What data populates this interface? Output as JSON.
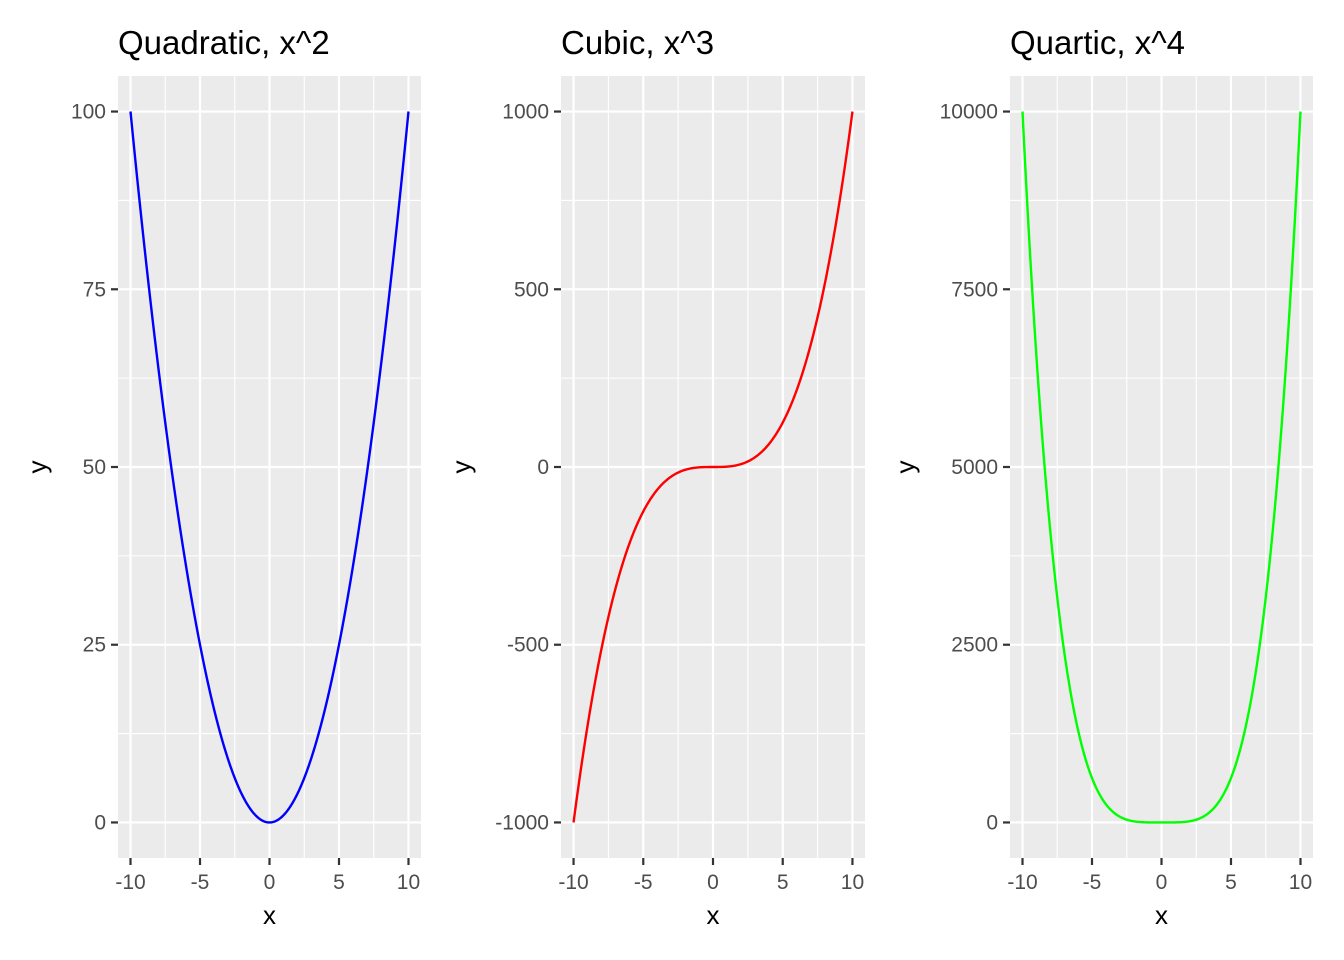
{
  "chart_data": [
    {
      "type": "line",
      "title": "Quadratic, x^2",
      "xlabel": "x",
      "ylabel": "y",
      "xlim": [
        -10,
        10
      ],
      "ylim": [
        0,
        100
      ],
      "x_ticks": [
        -10,
        -5,
        0,
        5,
        10
      ],
      "x_tick_labels": [
        "-10",
        "-5",
        "0",
        "5",
        "10"
      ],
      "y_ticks": [
        0,
        25,
        50,
        75,
        100
      ],
      "y_tick_labels": [
        "0",
        "25",
        "50",
        "75",
        "100"
      ],
      "grid": true,
      "color": "#0000ff",
      "x": [
        -10,
        -9,
        -8,
        -7,
        -6,
        -5,
        -4,
        -3,
        -2,
        -1,
        0,
        1,
        2,
        3,
        4,
        5,
        6,
        7,
        8,
        9,
        10
      ],
      "y": [
        100,
        81,
        64,
        49,
        36,
        25,
        16,
        9,
        4,
        1,
        0,
        1,
        4,
        9,
        16,
        25,
        36,
        49,
        64,
        81,
        100
      ]
    },
    {
      "type": "line",
      "title": "Cubic, x^3",
      "xlabel": "x",
      "ylabel": "y",
      "xlim": [
        -10,
        10
      ],
      "ylim": [
        -1000,
        1000
      ],
      "x_ticks": [
        -10,
        -5,
        0,
        5,
        10
      ],
      "x_tick_labels": [
        "-10",
        "-5",
        "0",
        "5",
        "10"
      ],
      "y_ticks": [
        -1000,
        -500,
        0,
        500,
        1000
      ],
      "y_tick_labels": [
        "-1000",
        "-500",
        "0",
        "500",
        "1000"
      ],
      "grid": true,
      "color": "#ff0000",
      "x": [
        -10,
        -9,
        -8,
        -7,
        -6,
        -5,
        -4,
        -3,
        -2,
        -1,
        0,
        1,
        2,
        3,
        4,
        5,
        6,
        7,
        8,
        9,
        10
      ],
      "y": [
        -1000,
        -729,
        -512,
        -343,
        -216,
        -125,
        -64,
        -27,
        -8,
        -1,
        0,
        1,
        8,
        27,
        64,
        125,
        216,
        343,
        512,
        729,
        1000
      ]
    },
    {
      "type": "line",
      "title": "Quartic, x^4",
      "xlabel": "x",
      "ylabel": "y",
      "xlim": [
        -10,
        10
      ],
      "ylim": [
        0,
        10000
      ],
      "x_ticks": [
        -10,
        -5,
        0,
        5,
        10
      ],
      "x_tick_labels": [
        "-10",
        "-5",
        "0",
        "5",
        "10"
      ],
      "y_ticks": [
        0,
        2500,
        5000,
        7500,
        10000
      ],
      "y_tick_labels": [
        "0",
        "2500",
        "5000",
        "7500",
        "10000"
      ],
      "grid": true,
      "color": "#00ff00",
      "x": [
        -10,
        -9,
        -8,
        -7,
        -6,
        -5,
        -4,
        -3,
        -2,
        -1,
        0,
        1,
        2,
        3,
        4,
        5,
        6,
        7,
        8,
        9,
        10
      ],
      "y": [
        10000,
        6561,
        4096,
        2401,
        1296,
        625,
        256,
        81,
        16,
        1,
        0,
        1,
        16,
        81,
        256,
        625,
        1296,
        2401,
        4096,
        6561,
        10000
      ]
    }
  ]
}
